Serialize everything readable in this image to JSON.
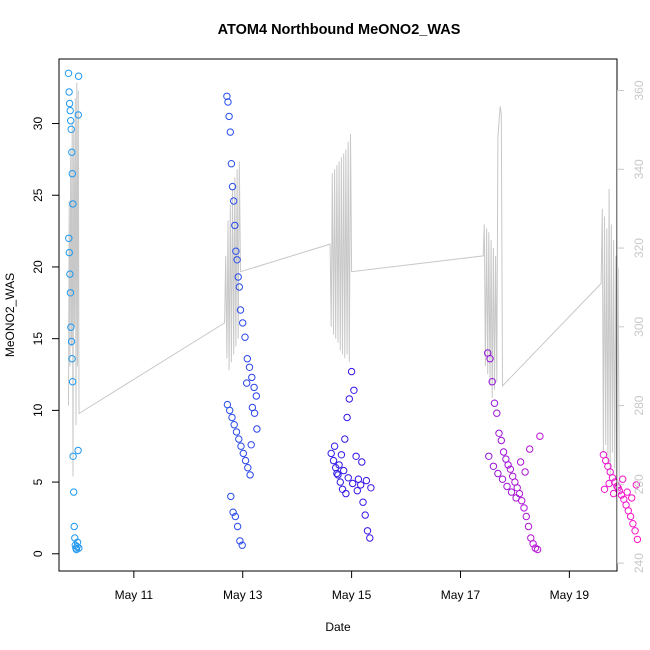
{
  "chart_data": {
    "type": "scatter",
    "title": "ATOM4 Northbound MeONO2_WAS",
    "xlabel": "Date",
    "ylabel": "MeONO2_WAS",
    "x_axis": {
      "type": "date",
      "xlim": [
        "2018-05-09T15:00",
        "2018-05-19T21:00"
      ],
      "ticks": [
        "May 11",
        "May 13",
        "May 15",
        "May 17",
        "May 19"
      ],
      "tick_dates": [
        "2018-05-11",
        "2018-05-13",
        "2018-05-15",
        "2018-05-17",
        "2018-05-19"
      ]
    },
    "y_axis_left": {
      "ylim": [
        -1.2,
        34.5
      ],
      "ticks": [
        "0",
        "5",
        "10",
        "15",
        "20",
        "25",
        "30"
      ]
    },
    "y_axis_right": {
      "ylim": [
        238,
        368
      ],
      "ticks": [
        "240",
        "260",
        "280",
        "300",
        "320",
        "340",
        "360"
      ],
      "color": "#c8c8c8"
    },
    "colors": {
      "start": "#1e9bf0",
      "mid": "#3214e6",
      "end": "#ff14c8",
      "line": "#c8c8c8"
    },
    "grid": false,
    "legend": "none",
    "series": [
      {
        "axis": "left",
        "marker": "open-circle",
        "points": [
          [
            "2018-05-09T19:12",
            33.5
          ],
          [
            "2018-05-09T19:26",
            32.2
          ],
          [
            "2018-05-09T19:40",
            31.4
          ],
          [
            "2018-05-09T19:55",
            30.9
          ],
          [
            "2018-05-09T20:09",
            30.2
          ],
          [
            "2018-05-09T20:24",
            29.6
          ],
          [
            "2018-05-09T20:38",
            28.0
          ],
          [
            "2018-05-09T20:52",
            26.5
          ],
          [
            "2018-05-09T21:07",
            24.4
          ],
          [
            "2018-05-09T19:19",
            22.0
          ],
          [
            "2018-05-09T19:33",
            21.0
          ],
          [
            "2018-05-09T19:48",
            19.5
          ],
          [
            "2018-05-09T20:02",
            18.2
          ],
          [
            "2018-05-09T20:16",
            15.8
          ],
          [
            "2018-05-09T20:31",
            14.8
          ],
          [
            "2018-05-09T20:45",
            13.6
          ],
          [
            "2018-05-09T21:00",
            12.0
          ],
          [
            "2018-05-09T21:14",
            6.8
          ],
          [
            "2018-05-09T21:28",
            4.3
          ],
          [
            "2018-05-09T21:43",
            1.9
          ],
          [
            "2018-05-09T21:57",
            1.1
          ],
          [
            "2018-05-09T22:12",
            0.6
          ],
          [
            "2018-05-09T22:26",
            0.4
          ],
          [
            "2018-05-09T22:40",
            0.3
          ],
          [
            "2018-05-09T22:55",
            0.5
          ],
          [
            "2018-05-09T23:09",
            0.8
          ],
          [
            "2018-05-09T23:24",
            7.2
          ],
          [
            "2018-05-09T23:31",
            30.6
          ],
          [
            "2018-05-09T23:38",
            33.3
          ],
          [
            "2018-05-09T23:45",
            0.4
          ],
          [
            "2018-05-12T17:00",
            31.9
          ],
          [
            "2018-05-12T17:30",
            31.5
          ],
          [
            "2018-05-12T18:00",
            30.5
          ],
          [
            "2018-05-12T18:30",
            29.4
          ],
          [
            "2018-05-12T19:00",
            27.2
          ],
          [
            "2018-05-12T19:30",
            25.6
          ],
          [
            "2018-05-12T20:00",
            24.6
          ],
          [
            "2018-05-12T20:30",
            22.9
          ],
          [
            "2018-05-12T21:00",
            21.1
          ],
          [
            "2018-05-12T21:30",
            20.5
          ],
          [
            "2018-05-12T22:00",
            19.3
          ],
          [
            "2018-05-12T22:30",
            18.6
          ],
          [
            "2018-05-12T23:00",
            17.0
          ],
          [
            "2018-05-13T00:00",
            16.1
          ],
          [
            "2018-05-13T01:00",
            15.1
          ],
          [
            "2018-05-13T02:00",
            13.6
          ],
          [
            "2018-05-13T03:00",
            13.0
          ],
          [
            "2018-05-13T04:00",
            12.3
          ],
          [
            "2018-05-13T05:00",
            11.6
          ],
          [
            "2018-05-13T06:00",
            11.0
          ],
          [
            "2018-05-12T17:15",
            10.4
          ],
          [
            "2018-05-12T18:15",
            10.0
          ],
          [
            "2018-05-12T19:15",
            9.5
          ],
          [
            "2018-05-12T20:15",
            9.0
          ],
          [
            "2018-05-12T21:15",
            8.5
          ],
          [
            "2018-05-12T22:15",
            8.0
          ],
          [
            "2018-05-12T23:15",
            7.5
          ],
          [
            "2018-05-13T00:15",
            7.0
          ],
          [
            "2018-05-13T01:15",
            6.5
          ],
          [
            "2018-05-13T02:15",
            6.0
          ],
          [
            "2018-05-13T03:15",
            5.5
          ],
          [
            "2018-05-13T04:15",
            10.2
          ],
          [
            "2018-05-13T05:15",
            9.8
          ],
          [
            "2018-05-13T06:15",
            8.7
          ],
          [
            "2018-05-12T18:45",
            4.0
          ],
          [
            "2018-05-12T19:45",
            2.9
          ],
          [
            "2018-05-12T20:45",
            2.6
          ],
          [
            "2018-05-12T21:45",
            1.9
          ],
          [
            "2018-05-12T22:45",
            0.9
          ],
          [
            "2018-05-12T23:45",
            0.6
          ],
          [
            "2018-05-13T01:45",
            11.9
          ],
          [
            "2018-05-13T03:45",
            7.6
          ],
          [
            "2018-05-14T15:00",
            7.0
          ],
          [
            "2018-05-14T16:00",
            6.5
          ],
          [
            "2018-05-14T17:00",
            6.0
          ],
          [
            "2018-05-14T18:00",
            5.5
          ],
          [
            "2018-05-14T19:00",
            5.0
          ],
          [
            "2018-05-14T20:00",
            4.5
          ],
          [
            "2018-05-14T21:00",
            8.0
          ],
          [
            "2018-05-14T22:00",
            9.5
          ],
          [
            "2018-05-14T23:00",
            10.8
          ],
          [
            "2018-05-15T00:00",
            12.7
          ],
          [
            "2018-05-15T01:00",
            11.4
          ],
          [
            "2018-05-15T02:00",
            6.8
          ],
          [
            "2018-05-15T03:00",
            5.2
          ],
          [
            "2018-05-15T04:00",
            4.8
          ],
          [
            "2018-05-15T05:00",
            3.6
          ],
          [
            "2018-05-15T06:00",
            2.7
          ],
          [
            "2018-05-15T07:00",
            1.6
          ],
          [
            "2018-05-15T08:00",
            1.1
          ],
          [
            "2018-05-14T16:30",
            7.5
          ],
          [
            "2018-05-14T18:30",
            6.2
          ],
          [
            "2018-05-14T20:30",
            5.8
          ],
          [
            "2018-05-14T22:30",
            5.3
          ],
          [
            "2018-05-15T00:30",
            4.9
          ],
          [
            "2018-05-15T02:30",
            4.4
          ],
          [
            "2018-05-15T04:30",
            6.4
          ],
          [
            "2018-05-15T06:30",
            5.1
          ],
          [
            "2018-05-15T08:30",
            4.6
          ],
          [
            "2018-05-14T17:30",
            5.6
          ],
          [
            "2018-05-14T19:30",
            6.9
          ],
          [
            "2018-05-14T21:30",
            4.2
          ],
          [
            "2018-05-17T12:00",
            14.0
          ],
          [
            "2018-05-17T13:00",
            13.6
          ],
          [
            "2018-05-17T14:00",
            12.0
          ],
          [
            "2018-05-17T15:00",
            10.5
          ],
          [
            "2018-05-17T16:00",
            9.8
          ],
          [
            "2018-05-17T17:00",
            8.4
          ],
          [
            "2018-05-17T18:00",
            7.9
          ],
          [
            "2018-05-17T19:00",
            7.1
          ],
          [
            "2018-05-17T20:00",
            6.6
          ],
          [
            "2018-05-17T21:00",
            6.2
          ],
          [
            "2018-05-17T22:00",
            5.9
          ],
          [
            "2018-05-17T23:00",
            5.4
          ],
          [
            "2018-05-18T00:00",
            5.0
          ],
          [
            "2018-05-18T01:00",
            4.6
          ],
          [
            "2018-05-18T02:00",
            4.2
          ],
          [
            "2018-05-18T03:00",
            3.7
          ],
          [
            "2018-05-18T04:00",
            3.2
          ],
          [
            "2018-05-18T05:00",
            2.6
          ],
          [
            "2018-05-18T06:00",
            1.9
          ],
          [
            "2018-05-18T07:00",
            1.1
          ],
          [
            "2018-05-18T08:00",
            0.7
          ],
          [
            "2018-05-18T09:00",
            0.4
          ],
          [
            "2018-05-18T10:00",
            0.3
          ],
          [
            "2018-05-18T11:00",
            8.2
          ],
          [
            "2018-05-17T12:30",
            6.8
          ],
          [
            "2018-05-17T14:30",
            6.1
          ],
          [
            "2018-05-17T16:30",
            5.6
          ],
          [
            "2018-05-17T18:30",
            5.2
          ],
          [
            "2018-05-17T20:30",
            4.7
          ],
          [
            "2018-05-17T22:30",
            4.3
          ],
          [
            "2018-05-18T00:30",
            3.9
          ],
          [
            "2018-05-18T02:30",
            6.4
          ],
          [
            "2018-05-18T04:30",
            5.7
          ],
          [
            "2018-05-18T06:30",
            7.3
          ],
          [
            "2018-05-19T15:00",
            6.9
          ],
          [
            "2018-05-19T16:00",
            6.5
          ],
          [
            "2018-05-19T17:00",
            6.1
          ],
          [
            "2018-05-19T18:00",
            5.7
          ],
          [
            "2018-05-19T19:00",
            5.3
          ],
          [
            "2018-05-19T20:00",
            5.0
          ],
          [
            "2018-05-19T21:00",
            4.7
          ],
          [
            "2018-05-19T22:00",
            4.4
          ],
          [
            "2018-05-19T23:00",
            4.1
          ],
          [
            "2018-05-20T00:00",
            3.8
          ],
          [
            "2018-05-20T01:00",
            3.4
          ],
          [
            "2018-05-20T02:00",
            3.0
          ],
          [
            "2018-05-20T03:00",
            2.6
          ],
          [
            "2018-05-20T04:00",
            2.1
          ],
          [
            "2018-05-20T05:00",
            1.6
          ],
          [
            "2018-05-20T06:00",
            1.0
          ],
          [
            "2018-05-19T15:30",
            4.5
          ],
          [
            "2018-05-19T17:30",
            4.9
          ],
          [
            "2018-05-19T19:30",
            4.2
          ],
          [
            "2018-05-19T21:30",
            4.6
          ],
          [
            "2018-05-19T23:30",
            5.2
          ],
          [
            "2018-05-20T01:30",
            4.3
          ],
          [
            "2018-05-20T03:30",
            3.9
          ],
          [
            "2018-05-20T05:30",
            4.8
          ]
        ]
      },
      {
        "axis": "right",
        "marker": "line",
        "color": "#c8c8c8",
        "points": [
          [
            "2018-05-09T19:12",
            280
          ],
          [
            "2018-05-09T19:30",
            332
          ],
          [
            "2018-05-09T19:50",
            290
          ],
          [
            "2018-05-09T20:10",
            345
          ],
          [
            "2018-05-09T20:30",
            295
          ],
          [
            "2018-05-09T20:50",
            352
          ],
          [
            "2018-05-09T21:10",
            262
          ],
          [
            "2018-05-09T21:30",
            350
          ],
          [
            "2018-05-09T21:50",
            300
          ],
          [
            "2018-05-09T22:10",
            358
          ],
          [
            "2018-05-09T22:30",
            275
          ],
          [
            "2018-05-09T22:50",
            362
          ],
          [
            "2018-05-09T23:10",
            290
          ],
          [
            "2018-05-09T23:30",
            360
          ],
          [
            "2018-05-09T23:50",
            278
          ],
          [
            "2018-05-12T16:00",
            301
          ],
          [
            "2018-05-12T16:30",
            318
          ],
          [
            "2018-05-12T17:00",
            292
          ],
          [
            "2018-05-12T17:30",
            327
          ],
          [
            "2018-05-12T18:00",
            289
          ],
          [
            "2018-05-12T18:30",
            331
          ],
          [
            "2018-05-12T19:00",
            291
          ],
          [
            "2018-05-12T19:30",
            335
          ],
          [
            "2018-05-12T20:00",
            293
          ],
          [
            "2018-05-12T20:30",
            338
          ],
          [
            "2018-05-12T21:00",
            295
          ],
          [
            "2018-05-12T21:30",
            340
          ],
          [
            "2018-05-12T22:00",
            297
          ],
          [
            "2018-05-12T22:30",
            342
          ],
          [
            "2018-05-12T23:00",
            314
          ],
          [
            "2018-05-14T14:30",
            321
          ],
          [
            "2018-05-14T15:00",
            300
          ],
          [
            "2018-05-14T15:30",
            339
          ],
          [
            "2018-05-14T16:00",
            298
          ],
          [
            "2018-05-14T16:30",
            340
          ],
          [
            "2018-05-14T17:00",
            297
          ],
          [
            "2018-05-14T17:30",
            341
          ],
          [
            "2018-05-14T18:00",
            296
          ],
          [
            "2018-05-14T18:30",
            342
          ],
          [
            "2018-05-14T19:00",
            294
          ],
          [
            "2018-05-14T19:30",
            343
          ],
          [
            "2018-05-14T20:00",
            293
          ],
          [
            "2018-05-14T20:30",
            344
          ],
          [
            "2018-05-14T21:00",
            292
          ],
          [
            "2018-05-14T21:30",
            345
          ],
          [
            "2018-05-14T22:00",
            293
          ],
          [
            "2018-05-14T22:30",
            347
          ],
          [
            "2018-05-14T23:00",
            291
          ],
          [
            "2018-05-14T23:30",
            349
          ],
          [
            "2018-05-15T00:00",
            314
          ],
          [
            "2018-05-17T10:00",
            318
          ],
          [
            "2018-05-17T10:30",
            326
          ],
          [
            "2018-05-17T11:00",
            290
          ],
          [
            "2018-05-17T11:30",
            325
          ],
          [
            "2018-05-17T12:00",
            288
          ],
          [
            "2018-05-17T12:30",
            324
          ],
          [
            "2018-05-17T13:00",
            285
          ],
          [
            "2018-05-17T13:30",
            322
          ],
          [
            "2018-05-17T14:00",
            282
          ],
          [
            "2018-05-17T14:30",
            320
          ],
          [
            "2018-05-17T15:00",
            284
          ],
          [
            "2018-05-17T15:30",
            318
          ],
          [
            "2018-05-17T16:00",
            286
          ],
          [
            "2018-05-17T16:30",
            348
          ],
          [
            "2018-05-17T17:00",
            352
          ],
          [
            "2018-05-17T17:30",
            356
          ],
          [
            "2018-05-17T18:00",
            354
          ],
          [
            "2018-05-17T18:30",
            285
          ],
          [
            "2018-05-19T14:00",
            311
          ],
          [
            "2018-05-19T14:30",
            330
          ],
          [
            "2018-05-19T15:00",
            268
          ],
          [
            "2018-05-19T15:30",
            328
          ],
          [
            "2018-05-19T16:00",
            270
          ],
          [
            "2018-05-19T16:30",
            325
          ],
          [
            "2018-05-19T17:00",
            265
          ],
          [
            "2018-05-19T17:30",
            335
          ],
          [
            "2018-05-19T18:00",
            262
          ],
          [
            "2018-05-19T18:30",
            326
          ],
          [
            "2018-05-19T19:00",
            268
          ],
          [
            "2018-05-19T19:30",
            322
          ],
          [
            "2018-05-19T20:00",
            264
          ],
          [
            "2018-05-19T20:30",
            318
          ],
          [
            "2018-05-19T21:00",
            262
          ],
          [
            "2018-05-19T21:30",
            315
          ],
          [
            "2018-05-19T22:00",
            260
          ]
        ]
      }
    ]
  }
}
